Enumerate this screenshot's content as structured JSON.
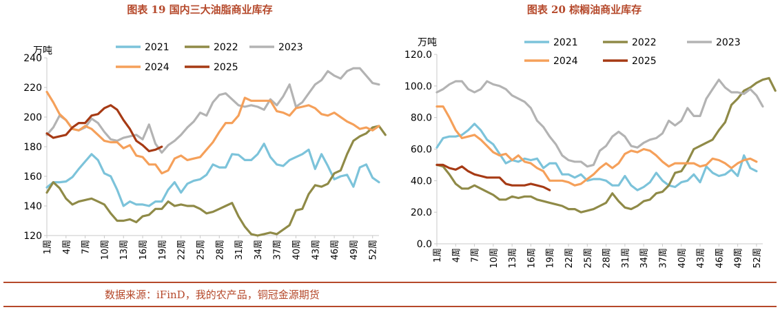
{
  "source_text": "数据来源：iFinD，我的农产品，铜冠金源期货",
  "theme": {
    "accent": "#b5482a",
    "axis": "#d9d9d9"
  },
  "chart_data": [
    {
      "type": "line",
      "title": "图表 19  国内三大油脂商业库存",
      "unit": "万吨",
      "ylim": [
        120,
        240
      ],
      "yticks": [
        120,
        140,
        160,
        180,
        200,
        220,
        240
      ],
      "ytick_labels": [
        "120",
        "140",
        "160",
        "180",
        "200",
        "220",
        "240"
      ],
      "x_range": [
        1,
        53
      ],
      "xticks": [
        1,
        4,
        7,
        10,
        13,
        16,
        19,
        22,
        25,
        28,
        31,
        34,
        37,
        40,
        43,
        46,
        49,
        52
      ],
      "xtick_labels": [
        "1周",
        "4周",
        "7周",
        "10周",
        "13周",
        "16周",
        "19周",
        "22周",
        "25周",
        "28周",
        "31周",
        "34周",
        "37周",
        "40周",
        "43周",
        "46周",
        "49周",
        "52周"
      ],
      "series": [
        {
          "name": "2021",
          "color": "#7cc3da",
          "x_start": 1,
          "values": [
            152.5,
            156,
            156,
            156.5,
            159.5,
            165,
            170,
            175,
            171,
            162,
            160,
            151,
            140,
            143,
            141,
            141,
            140,
            143,
            143,
            151,
            156,
            149,
            155,
            157,
            158,
            161,
            168,
            166,
            166,
            175,
            174.5,
            171,
            171,
            175,
            182,
            173,
            168,
            167,
            171,
            173,
            175,
            178,
            165,
            175,
            167,
            158,
            160,
            161,
            153,
            166,
            168,
            159,
            156
          ]
        },
        {
          "name": "2022",
          "color": "#8f8a47",
          "x_start": 1,
          "values": [
            149,
            156,
            152,
            145,
            141,
            143,
            144,
            145,
            143,
            141,
            135,
            130,
            130,
            131,
            129,
            133,
            134,
            138,
            138,
            143,
            140,
            141,
            140,
            140,
            138,
            135,
            136,
            138,
            140,
            142,
            133,
            126,
            121,
            120,
            121,
            122,
            121,
            124,
            127,
            137,
            138,
            148,
            154,
            153,
            155,
            162,
            164,
            175,
            184,
            187,
            189,
            193,
            194,
            188
          ]
        },
        {
          "name": "2023",
          "color": "#b3b3b3",
          "x_start": 1,
          "values": [
            188,
            193,
            201,
            198,
            192,
            191,
            193,
            199,
            196,
            190,
            185,
            184,
            186,
            187,
            188,
            185,
            195,
            182,
            176,
            181,
            184,
            188,
            193,
            197,
            203,
            201,
            210,
            215,
            216,
            212,
            208,
            207,
            208,
            207,
            205,
            212,
            208,
            214,
            222,
            207,
            210,
            216,
            222,
            225,
            231,
            228,
            226,
            231,
            233,
            233,
            228,
            223,
            222
          ]
        },
        {
          "name": "2024",
          "color": "#f5a05a",
          "x_start": 1,
          "values": [
            217,
            210,
            202,
            198,
            192,
            191,
            194,
            192,
            188,
            184,
            183,
            183,
            179,
            181,
            174,
            173,
            168,
            168,
            162,
            164,
            172,
            174,
            171,
            172,
            173,
            178,
            183,
            190,
            196,
            196,
            201,
            213,
            211,
            211,
            211,
            211,
            204,
            203,
            201,
            206,
            207,
            208,
            206,
            202,
            201,
            203,
            200,
            197,
            195,
            192,
            193,
            191,
            194
          ]
        },
        {
          "name": "2025",
          "color": "#a63a14",
          "x_start": 1,
          "values": [
            189,
            186,
            187,
            188,
            193,
            196,
            196,
            201,
            202,
            206,
            208,
            205,
            198,
            192,
            184,
            181,
            177,
            178,
            180
          ]
        }
      ]
    },
    {
      "type": "line",
      "title": "图表 20  棕榈油商业库存",
      "unit": "万吨",
      "ylim": [
        0,
        120
      ],
      "yticks": [
        0,
        20,
        40,
        60,
        80,
        100,
        120
      ],
      "ytick_labels": [
        "0.0",
        "20.0",
        "40.0",
        "60.0",
        "80.0",
        "100.0",
        "120.0"
      ],
      "x_range": [
        1,
        53
      ],
      "xticks": [
        1,
        4,
        7,
        10,
        13,
        16,
        19,
        22,
        25,
        28,
        31,
        34,
        37,
        40,
        43,
        46,
        49,
        52
      ],
      "xtick_labels": [
        "1周",
        "4周",
        "7周",
        "10周",
        "13周",
        "16周",
        "19周",
        "22周",
        "25周",
        "28周",
        "31周",
        "34周",
        "37周",
        "40周",
        "43周",
        "46周",
        "49周",
        "52周"
      ],
      "series": [
        {
          "name": "2021",
          "color": "#7cc3da",
          "x_start": 1,
          "values": [
            61,
            67,
            68,
            68,
            69,
            72,
            76,
            72,
            66,
            63,
            57,
            51,
            53,
            52,
            54,
            53,
            54,
            48,
            51,
            51,
            44,
            44,
            42,
            44,
            40,
            41,
            41,
            40,
            37,
            37,
            43,
            37,
            34,
            36,
            39,
            45,
            40,
            37,
            36,
            39,
            40,
            44,
            39,
            49,
            45,
            43,
            44,
            47,
            43,
            56,
            48,
            46
          ]
        },
        {
          "name": "2022",
          "color": "#8f8a47",
          "x_start": 1,
          "values": [
            50,
            49,
            44,
            38,
            35,
            35,
            37,
            35,
            33,
            31,
            28,
            28,
            30,
            29,
            30,
            30,
            28,
            27,
            26,
            25,
            24,
            22,
            22,
            20,
            21,
            22,
            24,
            26,
            32,
            27,
            23,
            22,
            24,
            27,
            28,
            32,
            33,
            37,
            45,
            46,
            52,
            60,
            62,
            64,
            66,
            72,
            77,
            88,
            92,
            97,
            99,
            102,
            104,
            105,
            97
          ]
        },
        {
          "name": "2023",
          "color": "#b3b3b3",
          "x_start": 1,
          "values": [
            96,
            98,
            101,
            103,
            103,
            98,
            96,
            98,
            103,
            101,
            100,
            98,
            94,
            92,
            90,
            86,
            78,
            74,
            68,
            63,
            56,
            53,
            52,
            52,
            49,
            50,
            59,
            62,
            68,
            71,
            68,
            62,
            61,
            64,
            66,
            67,
            70,
            78,
            75,
            78,
            86,
            81,
            81,
            92,
            98,
            104,
            99,
            96,
            96,
            95,
            98,
            94,
            87
          ]
        },
        {
          "name": "2024",
          "color": "#f5a05a",
          "x_start": 1,
          "values": [
            87,
            87,
            80,
            72,
            67,
            68,
            69,
            66,
            62,
            58,
            56,
            57,
            53,
            56,
            52,
            51,
            48,
            46,
            40,
            40,
            40,
            39,
            37,
            38,
            41,
            44,
            48,
            51,
            48,
            51,
            57,
            59,
            58,
            60,
            59,
            56,
            52,
            49,
            51,
            51,
            51,
            51,
            49,
            50,
            54,
            53,
            51,
            48,
            51,
            53,
            54,
            52
          ]
        },
        {
          "name": "2025",
          "color": "#a63a14",
          "x_start": 1,
          "values": [
            50,
            50,
            48,
            47,
            49,
            46,
            44,
            43,
            42,
            42,
            42,
            38,
            37,
            37,
            37,
            38,
            37,
            36,
            34
          ]
        }
      ]
    }
  ]
}
